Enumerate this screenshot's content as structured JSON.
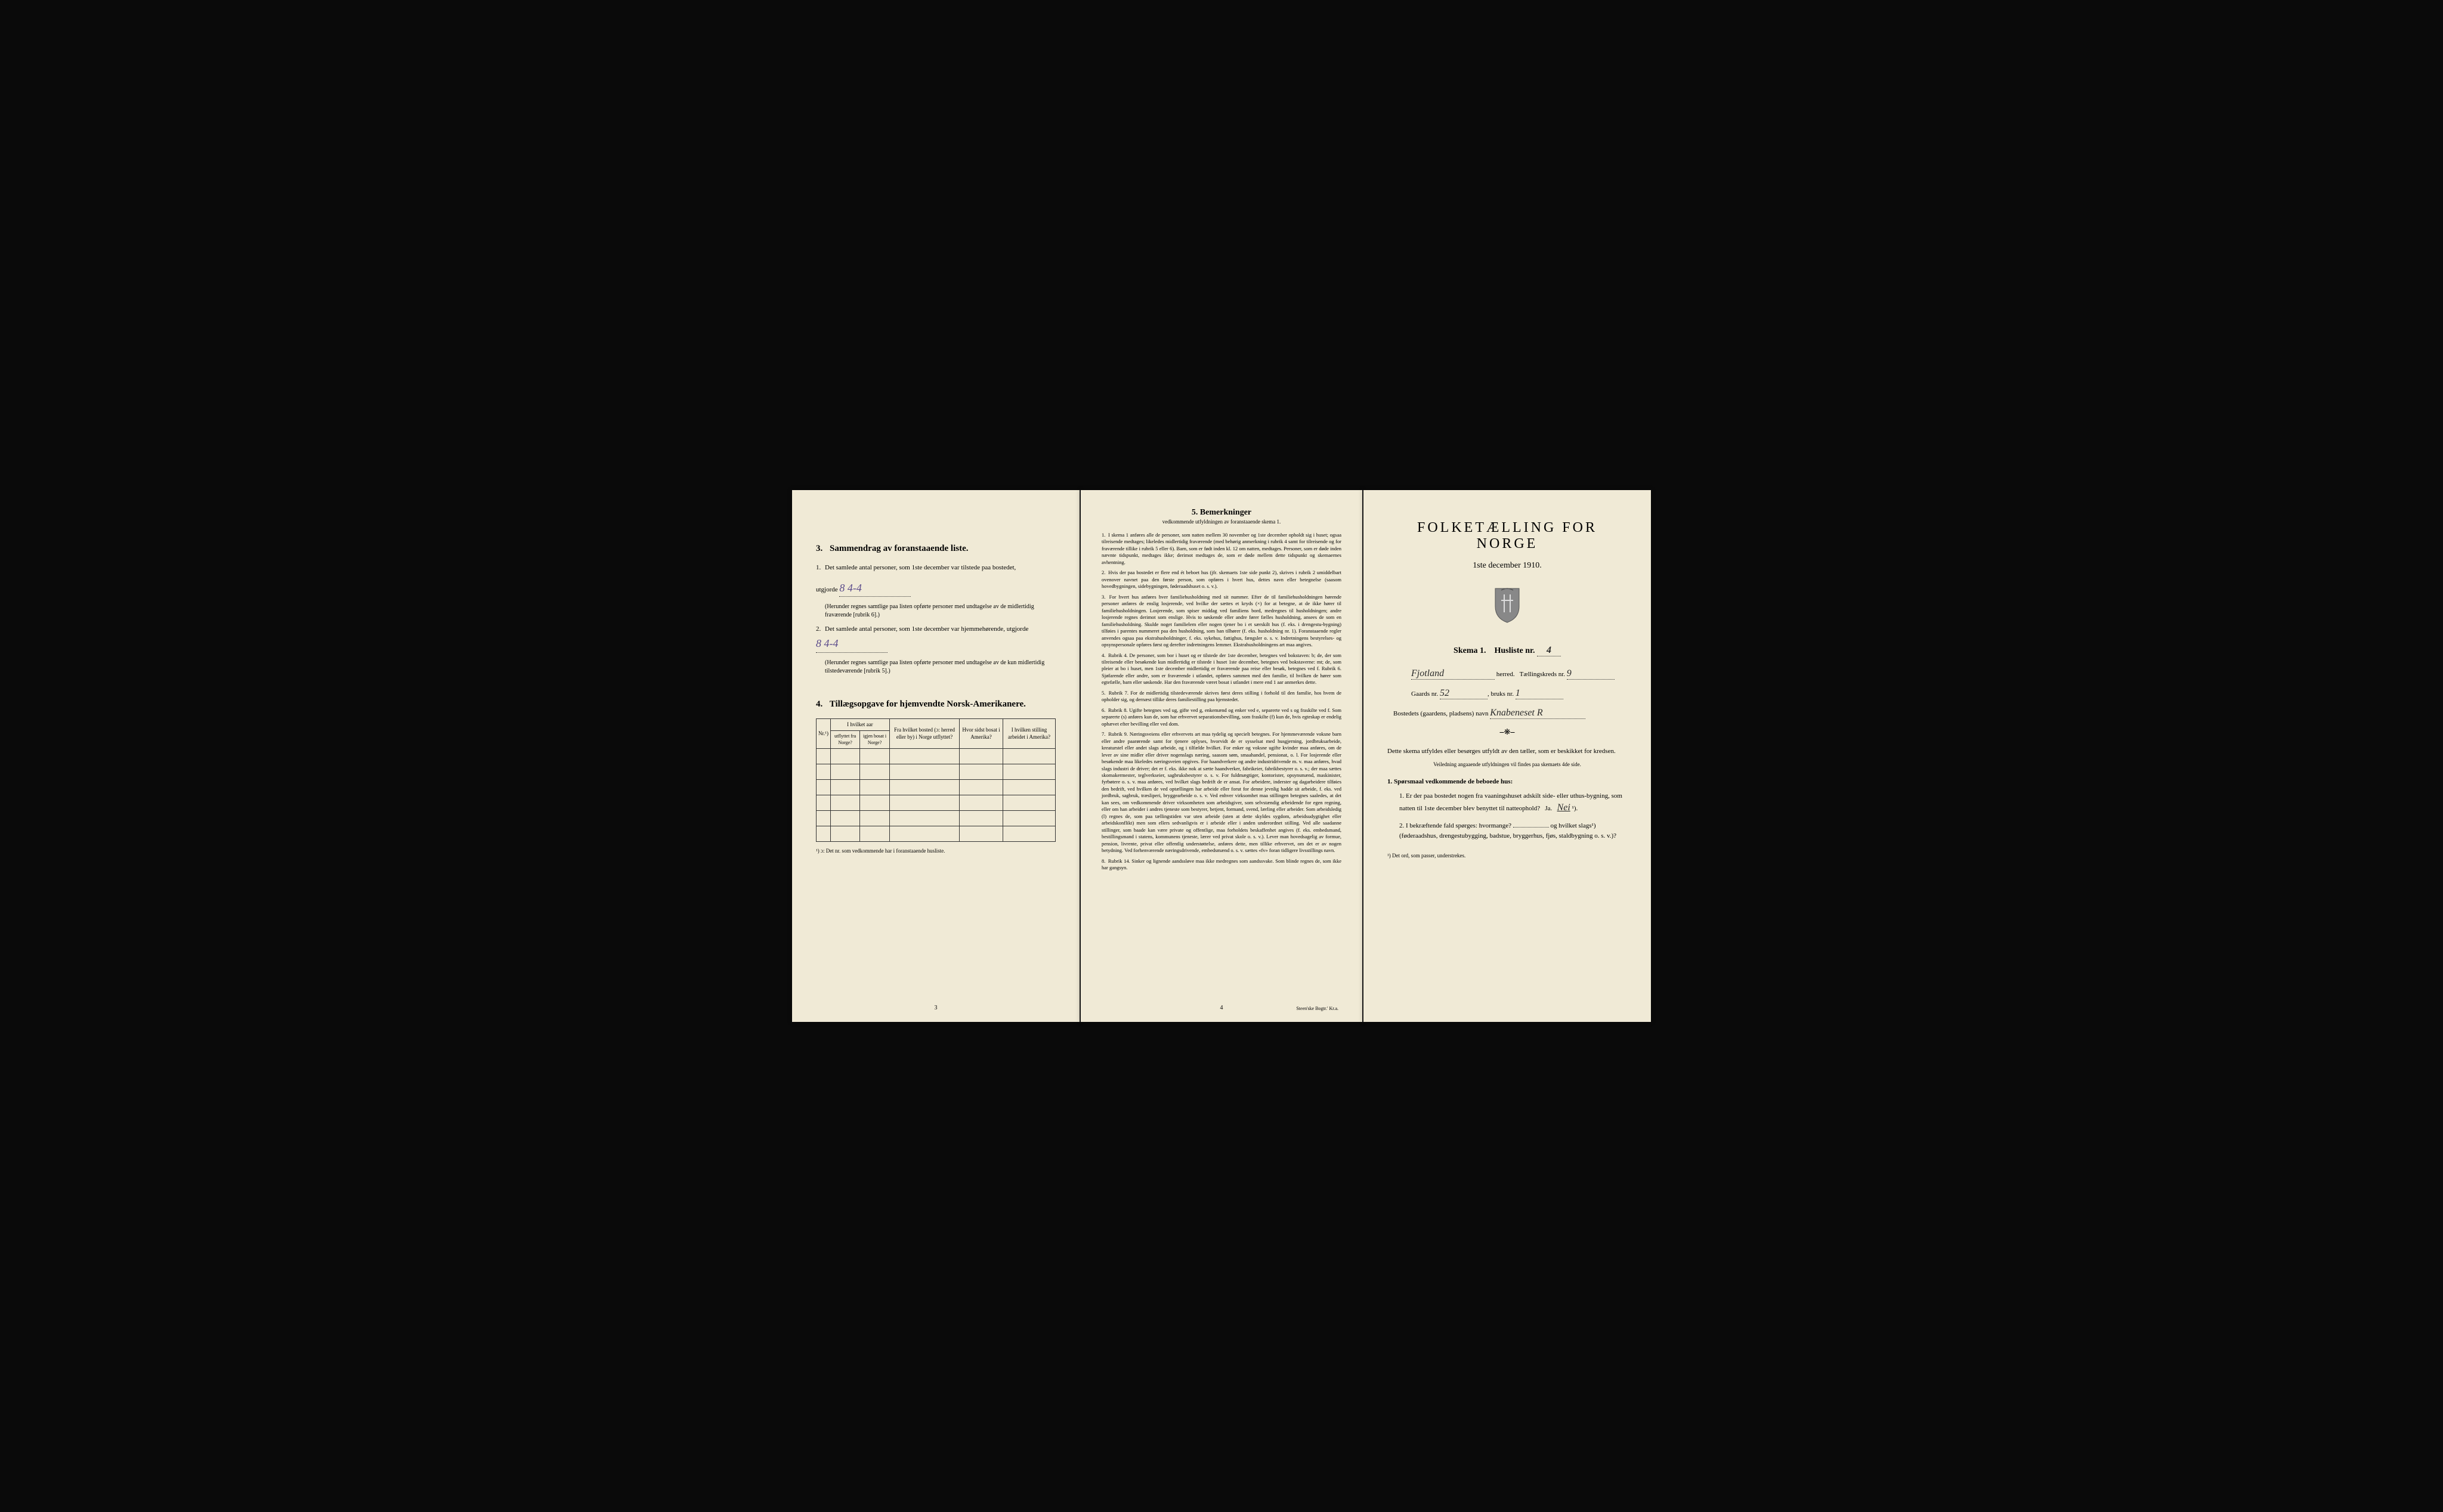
{
  "colors": {
    "paper": "#f0ead6",
    "ink": "#1a1a1a",
    "handwriting_purple": "#5a4a8a",
    "handwriting_black": "#2a2a2a"
  },
  "page1": {
    "section3": {
      "num": "3.",
      "title": "Sammendrag av foranstaaende liste.",
      "item1_num": "1.",
      "item1_text": "Det samlede antal personer, som 1ste december var tilstede paa bostedet,",
      "item1_label": "utgjorde",
      "item1_hw": "8    4-4",
      "item1_note": "(Herunder regnes samtlige paa listen opførte personer med undtagelse av de midlertidig fraværende [rubrik 6].)",
      "item2_num": "2.",
      "item2_text": "Det samlede antal personer, som 1ste december var hjemmehørende, utgjorde",
      "item2_hw": "8    4-4",
      "item2_note": "(Herunder regnes samtlige paa listen opførte personer med undtagelse av de kun midlertidig tilstedeværende [rubrik 5].)"
    },
    "section4": {
      "num": "4.",
      "title": "Tillægsopgave for hjemvendte Norsk-Amerikanere.",
      "col_nr": "Nr.¹)",
      "col_year_group": "I hvilket aar",
      "col_utflyttet": "utflyttet fra Norge?",
      "col_igjen": "igjen bosat i Norge?",
      "col_bosted": "Fra hvilket bosted (ɔ: herred eller by) i Norge utflyttet?",
      "col_sidst": "Hvor sidst bosat i Amerika?",
      "col_stilling": "I hvilken stilling arbeidet i Amerika?",
      "table_note": "¹) ɔ: Det nr. som vedkommende har i foranstaaende husliste."
    },
    "page_num": "3"
  },
  "page2": {
    "title_num": "5.",
    "title": "Bemerkninger",
    "subtitle": "vedkommende utfyldningen av foranstaaende skema 1.",
    "rubriks": [
      {
        "num": "1.",
        "text": "I skema 1 anføres alle de personer, som natten mellem 30 november og 1ste december opholdt sig i huset; ogsaa tilreisende medtages; likeledes midlertidig fraværende (med behørig anmerkning i rubrik 4 samt for tilreisende og for fraværende tillike i rubrik 5 eller 6). Barn, som er født inden kl. 12 om natten, medtages. Personer, som er døde inden nævnte tidspunkt, medtages ikke; derimot medtages de, som er døde mellem dette tidspunkt og skemaernes avhentning."
      },
      {
        "num": "2.",
        "text": "Hvis der paa bostedet er flere end ét beboet hus (jfr. skemaets 1ste side punkt 2), skrives i rubrik 2 umiddelbart ovenover navnet paa den første person, som opføres i hvert hus, dettes navn eller betegnelse (saasom hovedbygningen, sidebygningen, føderaadshuset o. s. v.)."
      },
      {
        "num": "3.",
        "text": "For hvert hus anføres hver familiehusholdning med sit nummer. Efter de til familiehusholdningen hørende personer anføres de enslig losjerende, ved hvilke der sættes et kryds (×) for at betegne, at de ikke hører til familiehusholdningen. Losjerende, som spiser middag ved familiens bord, medregnes til husholdningen; andre losjerende regnes derimot som enslige. Hvis to søskende eller andre fører fælles husholdning, ansees de som en familiehusholdning. Skulde noget familielem eller nogen tjener bo i et særskilt hus (f. eks. i drengestu-bygning) tilføies i parentes nummeret paa den husholdning, som han tilhører (f. eks. husholdning nr. 1). Foranstaaende regler anvendes ogsaa paa ekstrahusholdninger, f. eks. sykehus, fattighus, fængsler o. s. v. Indretningens bestyrelses- og opsynspersonale opføres først og derefter indretningens lemmer. Ekstrahusholdningens art maa angives."
      },
      {
        "num": "4.",
        "text": "Rubrik 4. De personer, som bor i huset og er tilstede der 1ste december, betegnes ved bokstaven: b; de, der som tilreisende eller besøkende kun midlertidig er tilstede i huset 1ste december, betegnes ved bokstaverne: mt; de, som pleier at bo i huset, men 1ste december midlertidig er fraværende paa reise eller besøk, betegnes ved f. Rubrik 6. Sjøfarende eller andre, som er fraværende i utlandet, opføres sammen med den familie, til hvilken de hører som egtefælle, barn eller søskende. Har den fraværende været bosat i utlandet i mere end 1 aar anmerkes dette."
      },
      {
        "num": "5.",
        "text": "Rubrik 7. For de midlertidig tilstedeværende skrives først deres stilling i forhold til den familie, hos hvem de opholder sig, og dernæst tillike deres familiestilling paa hjemstedet."
      },
      {
        "num": "6.",
        "text": "Rubrik 8. Ugifte betegnes ved ug, gifte ved g, enkemænd og enker ved e, separerte ved s og fraskilte ved f. Som separerte (s) anføres kun de, som har erhvervet separationsbevilling, som fraskilte (f) kun de, hvis egteskap er endelig ophævet efter bevilling eller ved dom."
      },
      {
        "num": "7.",
        "text": "Rubrik 9. Næringsveiens eller erhvervets art maa tydelig og specielt betegnes. For hjemmeværende voksne barn eller andre paarørende samt for tjenere oplyses, hvorvidt de er sysselsat med husgjerning, jordbruksarbeide, kreaturstel eller andet slags arbeide, og i tilfælde hvilket. For enker og voksne ugifte kvinder maa anføres, om de lever av sine midler eller driver nogenslags næring, saasom søm, smaahandel, pensionat, o. l. For losjerende eller besøkende maa likeledes næringsveien opgives. For haandverkere og andre industridrivende m. v. maa anføres, hvad slags industri de driver; det er f. eks. ikke nok at sætte haandverker, fabrikeier, fabrikbestyrer o. s. v.; der maa sættes skomakermester, teglverkseier, sagbruksbestyrer o. s. v. For fuldmægtiger, kontorister, opsynsmænd, maskinister, fyrbøtere o. s. v. maa anføres, ved hvilket slags bedrift de er ansat. For arbeidere, inderster og dagarbeidere tilføies den bedrift, ved hvilken de ved optællingen har arbeide eller forut for denne jevnlig hadde sit arbeide, f. eks. ved jordbruk, sagbruk, træsliperi, bryggearbeide o. s. v. Ved enhver virksomhet maa stillingen betegnes saaledes, at det kan sees, om vedkommende driver virksomheten som arbeidsgiver, som selvstændig arbeidende for egen regning, eller om han arbeider i andres tjeneste som bestyrer, betjent, formand, svend, lærling eller arbeider. Som arbeidsledig (l) regnes de, som paa tællingstiden var uten arbeide (uten at dette skyldes sygdom, arbeidsudygtighet eller arbeidskonflikt) men som ellers sedvanligvis er i arbeide eller i anden underordnet stilling. Ved alle saadanne stillinger, som baade kan være private og offentlige, maa forholdets beskaffenhet angives (f. eks. embedsmand, bestillingsmand i statens, kommunens tjeneste, lærer ved privat skole o. s. v.). Lever man hovedsagelig av formue, pension, livrente, privat eller offentlig understøttelse, anføres dette, men tillike erhvervet, om det er av nogen betydning. Ved forhenværende næringsdrivende, embedsmænd o. s. v. sættes «fv» foran tidligere livsstillings navn."
      },
      {
        "num": "8.",
        "text": "Rubrik 14. Sinker og lignende aandssløve maa ikke medregnes som aandssvake. Som blinde regnes de, som ikke har gangsyn."
      }
    ],
    "page_num": "4",
    "printer": "Steen'ske Bogtr.' Kr.a."
  },
  "page3": {
    "main_title": "FOLKETÆLLING FOR NORGE",
    "date": "1ste december 1910.",
    "skema_label": "Skema 1.",
    "husliste_label": "Husliste nr.",
    "husliste_hw": "4",
    "herred_hw": "Fjotland",
    "herred_label": "herred.",
    "kreds_label": "Tællingskreds nr.",
    "kreds_hw": "9",
    "gaards_label": "Gaards nr.",
    "gaards_hw": "52",
    "bruks_label": "bruks nr.",
    "bruks_hw": "1",
    "bosted_label": "Bostedets (gaardens, pladsens) navn",
    "bosted_hw": "Knabeneset R",
    "instructions": "Dette skema utfyldes eller besørges utfyldt av den tæller, som er beskikket for kredsen.",
    "instr_small": "Veiledning angaaende utfyldningen vil findes paa skemaets 4de side.",
    "q_header_num": "1.",
    "q_header": "Spørsmaal vedkommende de beboede hus:",
    "q1_num": "1.",
    "q1_text": "Er der paa bostedet nogen fra vaaningshuset adskilt side- eller uthus-bygning, som natten til 1ste december blev benyttet til natteophold?",
    "q1_ja": "Ja.",
    "q1_nei": "Nei",
    "q1_sup": "¹).",
    "q2_num": "2.",
    "q2_text": "I bekræftende fald spørges: hvormange?",
    "q2_text2": "og hvilket slags¹) (føderaadshus, drengestubygging, badstue, bryggerhus, fjøs, staldbygning o. s. v.)?",
    "footnote": "¹) Det ord, som passer, understrekes."
  }
}
